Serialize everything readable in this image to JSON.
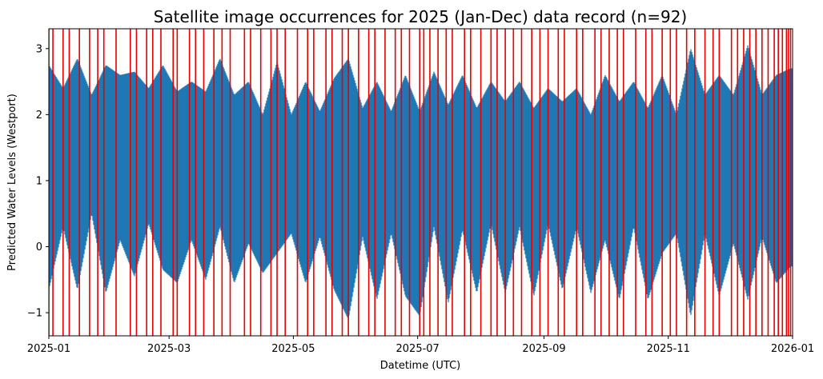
{
  "chart_data": {
    "type": "line",
    "title": "Satellite image occurrences for 2025 (Jan-Dec) data record (n=92)",
    "xlabel": "Datetime (UTC)",
    "ylabel": "Predicted Water Levels (Westport)",
    "x_range": [
      "2025-01-01",
      "2026-01-01"
    ],
    "ylim": [
      -1.35,
      3.3
    ],
    "grid": false,
    "x_ticks": [
      "2025-01",
      "2025-03",
      "2025-05",
      "2025-07",
      "2025-09",
      "2025-11",
      "2026-01"
    ],
    "y_ticks": [
      -1,
      0,
      1,
      2,
      3
    ],
    "colors": {
      "series": "#1f77b4",
      "markers": "#e60000"
    },
    "series": [
      {
        "name": "Predicted Water Levels (Westport)",
        "envelope": {
          "x": [
            "2025-01-01",
            "2025-01-08",
            "2025-01-15",
            "2025-01-22",
            "2025-01-29",
            "2025-02-05",
            "2025-02-12",
            "2025-02-19",
            "2025-02-26",
            "2025-03-05",
            "2025-03-12",
            "2025-03-19",
            "2025-03-26",
            "2025-04-02",
            "2025-04-09",
            "2025-04-16",
            "2025-04-23",
            "2025-04-30",
            "2025-05-07",
            "2025-05-14",
            "2025-05-21",
            "2025-05-28",
            "2025-06-04",
            "2025-06-11",
            "2025-06-18",
            "2025-06-25",
            "2025-07-02",
            "2025-07-09",
            "2025-07-16",
            "2025-07-23",
            "2025-07-30",
            "2025-08-06",
            "2025-08-13",
            "2025-08-20",
            "2025-08-27",
            "2025-09-03",
            "2025-09-10",
            "2025-09-17",
            "2025-09-24",
            "2025-10-01",
            "2025-10-08",
            "2025-10-15",
            "2025-10-22",
            "2025-10-29",
            "2025-11-05",
            "2025-11-12",
            "2025-11-19",
            "2025-11-26",
            "2025-12-03",
            "2025-12-10",
            "2025-12-17",
            "2025-12-24",
            "2025-12-31"
          ],
          "max": [
            2.75,
            2.4,
            2.85,
            2.3,
            2.75,
            2.6,
            2.65,
            2.4,
            2.75,
            2.35,
            2.5,
            2.35,
            2.85,
            2.3,
            2.5,
            2.0,
            2.8,
            2.0,
            2.5,
            2.05,
            2.55,
            2.85,
            2.1,
            2.5,
            2.05,
            2.6,
            2.05,
            2.65,
            2.15,
            2.6,
            2.1,
            2.5,
            2.2,
            2.5,
            2.1,
            2.4,
            2.2,
            2.4,
            2.0,
            2.6,
            2.2,
            2.5,
            2.1,
            2.6,
            2.0,
            3.0,
            2.3,
            2.6,
            2.3,
            3.05,
            2.3,
            2.6,
            2.7
          ],
          "min": [
            -0.65,
            0.3,
            -0.65,
            0.5,
            -0.7,
            0.1,
            -0.45,
            0.35,
            -0.35,
            -0.55,
            0.1,
            -0.5,
            0.3,
            -0.55,
            0.05,
            -0.4,
            -0.1,
            0.2,
            -0.55,
            0.15,
            -0.65,
            -1.1,
            0.15,
            -0.8,
            0.2,
            -0.75,
            -1.05,
            0.3,
            -0.85,
            0.25,
            -0.7,
            0.35,
            -0.7,
            0.3,
            -0.75,
            0.35,
            -0.65,
            0.3,
            -0.7,
            0.1,
            -0.8,
            0.3,
            -0.8,
            -0.1,
            0.2,
            -1.05,
            0.2,
            -0.75,
            0.05,
            -0.8,
            0.15,
            -0.55,
            -0.3
          ]
        }
      }
    ],
    "satellite_image_dates": [
      "2025-01-01",
      "2025-01-03",
      "2025-01-08",
      "2025-01-11",
      "2025-01-16",
      "2025-01-21",
      "2025-01-25",
      "2025-01-28",
      "2025-02-03",
      "2025-02-10",
      "2025-02-13",
      "2025-02-18",
      "2025-02-21",
      "2025-02-25",
      "2025-03-03",
      "2025-03-05",
      "2025-03-11",
      "2025-03-14",
      "2025-03-18",
      "2025-03-23",
      "2025-03-27",
      "2025-03-31",
      "2025-04-07",
      "2025-04-10",
      "2025-04-15",
      "2025-04-20",
      "2025-04-23",
      "2025-04-27",
      "2025-05-03",
      "2025-05-08",
      "2025-05-11",
      "2025-05-17",
      "2025-05-20",
      "2025-05-25",
      "2025-05-28",
      "2025-06-02",
      "2025-06-07",
      "2025-06-10",
      "2025-06-15",
      "2025-06-20",
      "2025-06-23",
      "2025-06-27",
      "2025-07-02",
      "2025-07-04",
      "2025-07-07",
      "2025-07-11",
      "2025-07-15",
      "2025-07-18",
      "2025-07-24",
      "2025-07-27",
      "2025-08-01",
      "2025-08-06",
      "2025-08-09",
      "2025-08-13",
      "2025-08-17",
      "2025-08-21",
      "2025-08-26",
      "2025-08-30",
      "2025-09-03",
      "2025-09-08",
      "2025-09-11",
      "2025-09-17",
      "2025-09-20",
      "2025-09-26",
      "2025-09-29",
      "2025-10-03",
      "2025-10-07",
      "2025-10-10",
      "2025-10-16",
      "2025-10-21",
      "2025-10-24",
      "2025-10-29",
      "2025-11-02",
      "2025-11-05",
      "2025-11-10",
      "2025-11-14",
      "2025-11-19",
      "2025-11-23",
      "2025-11-26",
      "2025-12-02",
      "2025-12-05",
      "2025-12-08",
      "2025-12-11",
      "2025-12-14",
      "2025-12-17",
      "2025-12-20",
      "2025-12-23",
      "2025-12-25",
      "2025-12-27",
      "2025-12-29",
      "2025-12-30",
      "2025-12-31"
    ]
  }
}
